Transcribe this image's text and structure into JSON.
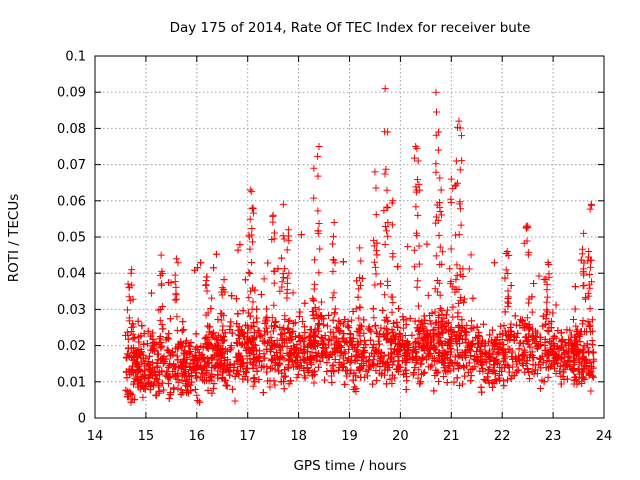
{
  "chart_data": {
    "type": "scatter",
    "title": "Day 175 of 2014, Rate Of TEC Index for receiver bute",
    "xlabel": "GPS time / hours",
    "ylabel": "ROTI / TECUs",
    "xlim": [
      14,
      24
    ],
    "ylim": [
      0,
      0.1
    ],
    "x_ticks": [
      14,
      15,
      16,
      17,
      18,
      19,
      20,
      21,
      22,
      23,
      24
    ],
    "x_tick_labels": [
      "14",
      "15",
      "16",
      "17",
      "18",
      "19",
      "20",
      "21",
      "22",
      "23",
      "24"
    ],
    "y_ticks": [
      0,
      0.01,
      0.02,
      0.03,
      0.04,
      0.05,
      0.06,
      0.07,
      0.08,
      0.09,
      0.1
    ],
    "y_tick_labels": [
      "0",
      "0.01",
      "0.02",
      "0.03",
      "0.04",
      "0.05",
      "0.06",
      "0.07",
      "0.08",
      "0.09",
      "0.1"
    ],
    "grid": true,
    "marker": "+",
    "series_color": "#ff0000",
    "grid_color": "#a0a0a0",
    "data_x_range": [
      14.6,
      23.8
    ],
    "point_count": 4200,
    "base_level_by_hour": [
      [
        14.6,
        0.014
      ],
      [
        15.0,
        0.014
      ],
      [
        15.5,
        0.015
      ],
      [
        16.0,
        0.014
      ],
      [
        16.5,
        0.016
      ],
      [
        17.0,
        0.019
      ],
      [
        17.5,
        0.018
      ],
      [
        18.0,
        0.019
      ],
      [
        18.5,
        0.02
      ],
      [
        19.0,
        0.018
      ],
      [
        19.5,
        0.018
      ],
      [
        20.0,
        0.019
      ],
      [
        20.5,
        0.02
      ],
      [
        21.0,
        0.02
      ],
      [
        21.5,
        0.018
      ],
      [
        22.0,
        0.017
      ],
      [
        22.5,
        0.02
      ],
      [
        23.0,
        0.018
      ],
      [
        23.5,
        0.017
      ],
      [
        23.8,
        0.016
      ]
    ],
    "notable_points": [
      {
        "x": 14.65,
        "y": 0.037
      },
      {
        "x": 14.72,
        "y": 0.041
      },
      {
        "x": 15.3,
        "y": 0.045
      },
      {
        "x": 15.6,
        "y": 0.044
      },
      {
        "x": 16.2,
        "y": 0.039
      },
      {
        "x": 16.5,
        "y": 0.036
      },
      {
        "x": 17.05,
        "y": 0.063
      },
      {
        "x": 17.1,
        "y": 0.058
      },
      {
        "x": 17.5,
        "y": 0.056
      },
      {
        "x": 17.7,
        "y": 0.059
      },
      {
        "x": 17.8,
        "y": 0.052
      },
      {
        "x": 18.3,
        "y": 0.069
      },
      {
        "x": 18.4,
        "y": 0.075
      },
      {
        "x": 18.7,
        "y": 0.054
      },
      {
        "x": 19.2,
        "y": 0.047
      },
      {
        "x": 19.5,
        "y": 0.068
      },
      {
        "x": 19.7,
        "y": 0.091
      },
      {
        "x": 19.75,
        "y": 0.079
      },
      {
        "x": 19.85,
        "y": 0.06
      },
      {
        "x": 20.3,
        "y": 0.075
      },
      {
        "x": 20.35,
        "y": 0.071
      },
      {
        "x": 20.7,
        "y": 0.09
      },
      {
        "x": 20.75,
        "y": 0.079
      },
      {
        "x": 20.8,
        "y": 0.063
      },
      {
        "x": 21.1,
        "y": 0.071
      },
      {
        "x": 21.15,
        "y": 0.082
      },
      {
        "x": 21.2,
        "y": 0.078
      },
      {
        "x": 21.0,
        "y": 0.066
      },
      {
        "x": 22.1,
        "y": 0.046
      },
      {
        "x": 22.5,
        "y": 0.053
      },
      {
        "x": 22.9,
        "y": 0.043
      },
      {
        "x": 23.6,
        "y": 0.051
      },
      {
        "x": 23.75,
        "y": 0.059
      },
      {
        "x": 23.7,
        "y": 0.046
      }
    ]
  }
}
